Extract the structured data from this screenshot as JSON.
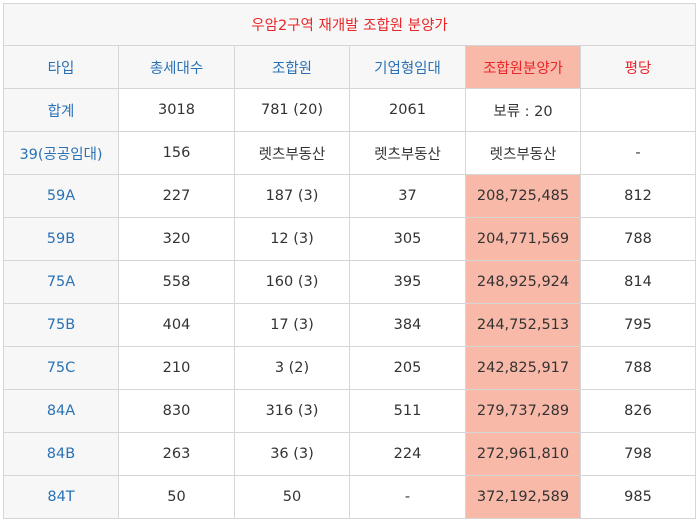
{
  "title": "우암2구역 재개발 조합원 분양가",
  "headers": [
    "타입",
    "총세대수",
    "조합원",
    "기업형임대",
    "조합원분양가",
    "평당"
  ],
  "rows": [
    [
      "합계",
      "3018",
      "781 (20)",
      "2061",
      "보류 : 20",
      ""
    ],
    [
      "39(공공임대)",
      "156",
      "렛츠부동산",
      "렛츠부동산",
      "렛츠부동산",
      "-"
    ],
    [
      "59A",
      "227",
      "187 (3)",
      "37",
      "208,725,485",
      "812"
    ],
    [
      "59B",
      "320",
      "12 (3)",
      "305",
      "204,771,569",
      "788"
    ],
    [
      "75A",
      "558",
      "160 (3)",
      "395",
      "248,925,924",
      "814"
    ],
    [
      "75B",
      "404",
      "17 (3)",
      "384",
      "244,752,513",
      "795"
    ],
    [
      "75C",
      "210",
      "3 (2)",
      "205",
      "242,825,917",
      "788"
    ],
    [
      "84A",
      "830",
      "316 (3)",
      "511",
      "279,737,289",
      "826"
    ],
    [
      "84B",
      "263",
      "36 (3)",
      "224",
      "272,961,810",
      "798"
    ],
    [
      "84T",
      "50",
      "50",
      "-",
      "372,192,589",
      "985"
    ]
  ],
  "colors": {
    "accent_red": "#e8262a",
    "accent_blue": "#2a72b5",
    "highlight": "#f9b9a9",
    "header_bg": "#f7f7f7"
  }
}
